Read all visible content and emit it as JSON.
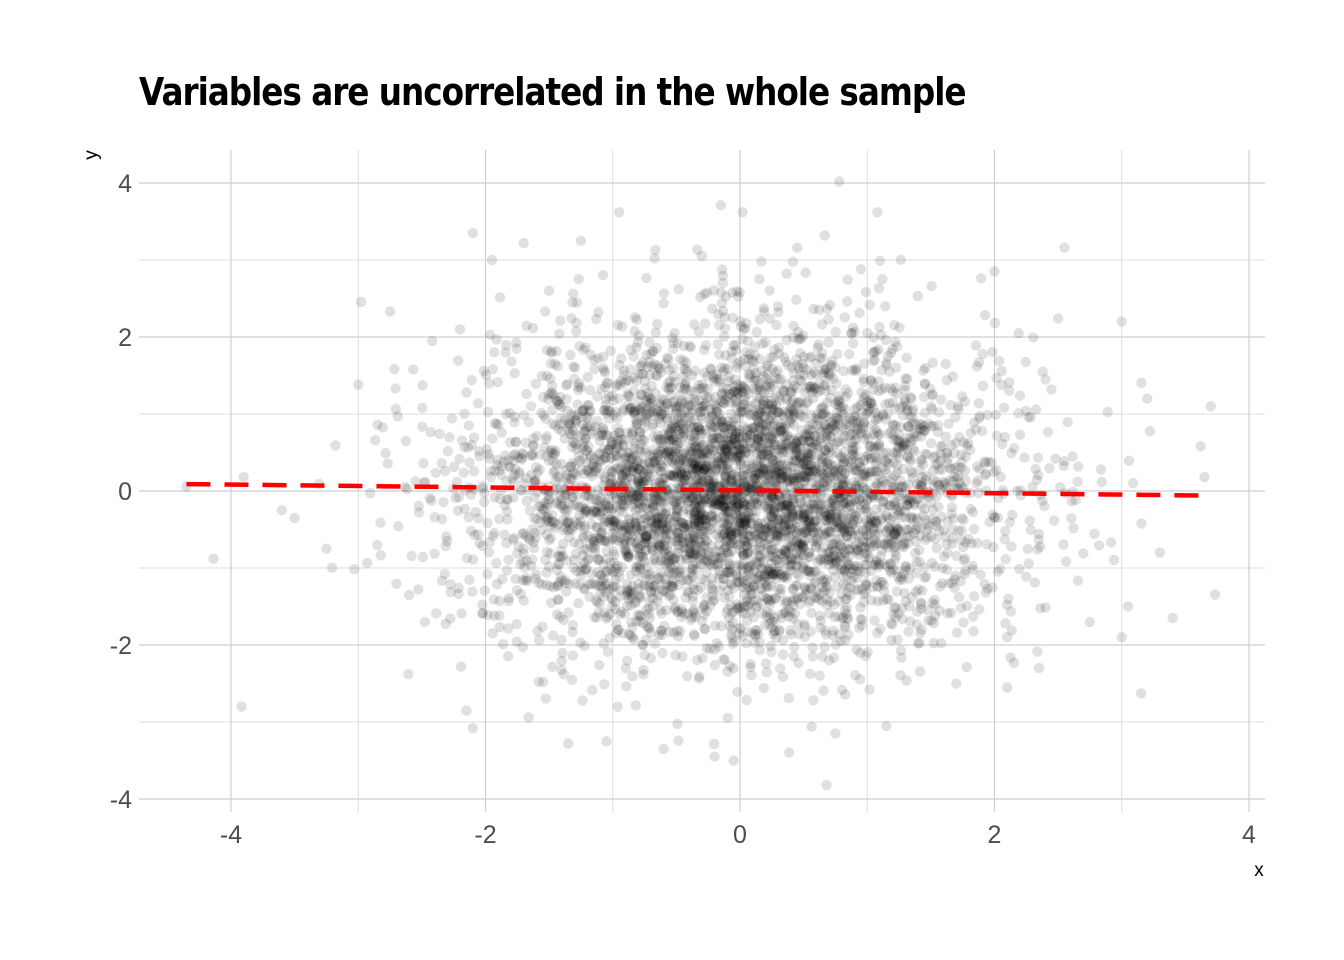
{
  "chart_data": {
    "type": "scatter",
    "title": "Variables are uncorrelated in the whole sample",
    "xlabel": "x",
    "ylabel": "y",
    "xlim": [
      -4.5,
      4.1
    ],
    "ylim": [
      -4.2,
      4.4
    ],
    "x_ticks": [
      -4,
      -2,
      0,
      2,
      4
    ],
    "y_ticks": [
      -4,
      -2,
      0,
      2,
      4
    ],
    "x_tick_labels": [
      "-4",
      "-2",
      "0",
      "2",
      "4"
    ],
    "y_tick_labels": [
      "-4",
      "-2",
      "0",
      "2",
      "4"
    ],
    "grid": true,
    "legend": "none",
    "point_color": "#000000",
    "point_alpha": 0.12,
    "sample_size": 5000,
    "distribution": {
      "x_mean": 0,
      "x_sd": 1,
      "y_mean": 0,
      "y_sd": 1,
      "correlation": 0
    },
    "points": [
      [
        0.78,
        4.02
      ],
      [
        -0.95,
        3.62
      ],
      [
        -0.15,
        3.71
      ],
      [
        0.02,
        3.62
      ],
      [
        1.08,
        3.62
      ],
      [
        -2.1,
        3.35
      ],
      [
        -1.25,
        3.25
      ],
      [
        -1.7,
        3.22
      ],
      [
        2.55,
        3.16
      ],
      [
        0.45,
        3.16
      ],
      [
        -0.3,
        3.05
      ],
      [
        1.1,
        2.99
      ],
      [
        -1.95,
        3.0
      ],
      [
        2.0,
        2.85
      ],
      [
        0.95,
        2.88
      ],
      [
        -3.0,
        1.38
      ],
      [
        -2.75,
        2.33
      ],
      [
        3.0,
        2.2
      ],
      [
        2.5,
        2.24
      ],
      [
        3.2,
        1.2
      ],
      [
        3.7,
        1.1
      ],
      [
        3.62,
        0.58
      ],
      [
        3.65,
        0.18
      ],
      [
        -4.35,
        0.06
      ],
      [
        -3.9,
        0.18
      ],
      [
        -3.6,
        -0.25
      ],
      [
        -3.5,
        -0.35
      ],
      [
        -3.25,
        -0.75
      ],
      [
        3.4,
        -1.65
      ],
      [
        3.0,
        -1.9
      ],
      [
        2.35,
        -2.3
      ],
      [
        2.1,
        -2.55
      ],
      [
        -2.15,
        -2.85
      ],
      [
        -2.1,
        -3.08
      ],
      [
        -1.35,
        -3.28
      ],
      [
        -0.2,
        -3.45
      ],
      [
        -0.05,
        -3.5
      ],
      [
        0.68,
        -3.82
      ],
      [
        0.75,
        -3.15
      ],
      [
        1.15,
        -3.05
      ],
      [
        -1.05,
        -3.25
      ],
      [
        -0.6,
        -3.35
      ],
      [
        1.7,
        -2.5
      ],
      [
        -2.6,
        -1.35
      ],
      [
        -2.85,
        -0.7
      ],
      [
        3.3,
        -0.8
      ],
      [
        3.05,
        -1.5
      ],
      [
        2.75,
        -1.7
      ],
      [
        -2.2,
        2.1
      ],
      [
        -1.5,
        2.6
      ]
    ],
    "regression_line": {
      "x": [
        -4.35,
        3.7
      ],
      "y": [
        0.09,
        -0.06
      ],
      "color": "#ff0000",
      "style": "dashed"
    }
  }
}
